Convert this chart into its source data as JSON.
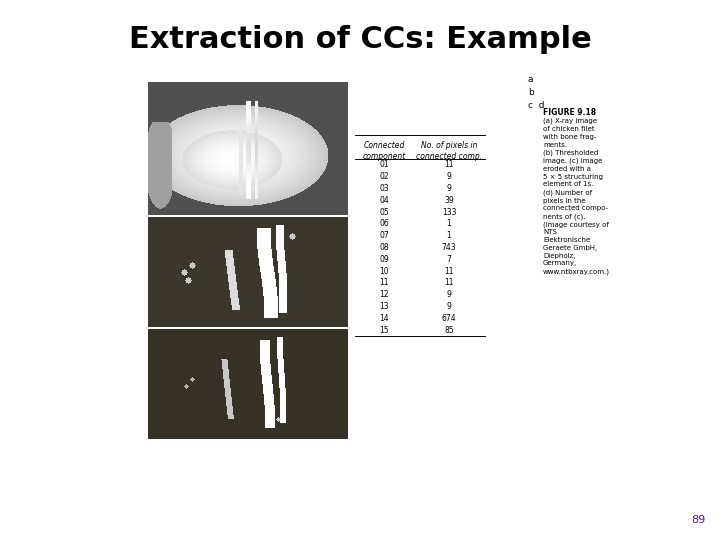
{
  "title": "Extraction of CCs: Example",
  "title_fontsize": 22,
  "background_color": "#ffffff",
  "page_number": "89",
  "page_number_color": "#6600cc",
  "figure_caption_title": "FIGURE 9.18",
  "figure_caption_lines": [
    "(a) X-ray image",
    "of chicken filet",
    "with bone frag-",
    "ments.",
    "(b) Thresholded",
    "image. (c) Image",
    "eroded with a",
    "5 × 5 structuring",
    "element of 1s.",
    "(d) Number of",
    "pixels in the",
    "connected compo-",
    "nents of (c).",
    "(Image courtesy of",
    "NTS",
    "Elektronische",
    "Geraete GmbH,",
    "Diepholz,",
    "Germany,",
    "www.ntbxray.com.)"
  ],
  "legend_labels": [
    "a",
    "b",
    "c  d"
  ],
  "table_header_col1": "Connected\ncomponent",
  "table_header_col2": "No. of pixels in\nconnected comp.",
  "table_data": [
    [
      "01",
      "11"
    ],
    [
      "02",
      "9"
    ],
    [
      "03",
      "9"
    ],
    [
      "04",
      "39"
    ],
    [
      "05",
      "133"
    ],
    [
      "06",
      "1"
    ],
    [
      "07",
      "1"
    ],
    [
      "08",
      "743"
    ],
    [
      "09",
      "7"
    ],
    [
      "10",
      "11"
    ],
    [
      "11",
      "11"
    ],
    [
      "12",
      "9"
    ],
    [
      "13",
      "9"
    ],
    [
      "14",
      "674"
    ],
    [
      "15",
      "85"
    ]
  ],
  "img_bg_color_a": "#606060",
  "img_bg_color_bc": "#4a4030"
}
